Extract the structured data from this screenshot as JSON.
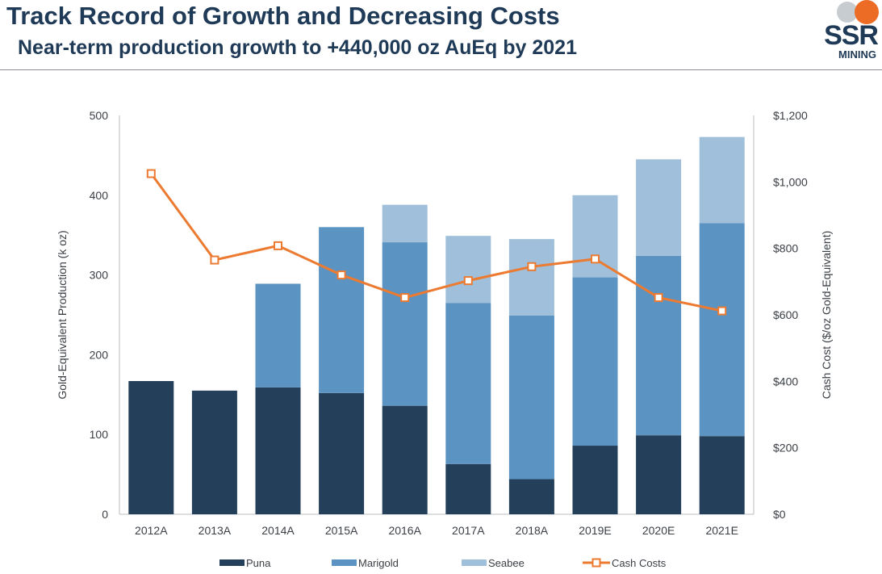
{
  "header": {
    "title": "Track Record of Growth and Decreasing Costs",
    "subtitle": "Near-term production growth to +440,000 oz AuEq by 2021"
  },
  "logo": {
    "text": "SSR",
    "subtext": "MINING",
    "colors": {
      "dot_grey": "#c7ccd1",
      "dot_orange": "#ec6b25"
    }
  },
  "chart_data": {
    "type": "bar",
    "stacked": true,
    "categories": [
      "2012A",
      "2013A",
      "2014A",
      "2015A",
      "2016A",
      "2017A",
      "2018A",
      "2019E",
      "2020E",
      "2021E"
    ],
    "series": [
      {
        "name": "Puna",
        "type": "bar",
        "axis": "left",
        "color": "#243f5a",
        "values": [
          167,
          155,
          159,
          152,
          136,
          63,
          44,
          86,
          99,
          98
        ]
      },
      {
        "name": "Marigold",
        "type": "bar",
        "axis": "left",
        "color": "#5b93c2",
        "values": [
          0,
          0,
          130,
          208,
          205,
          202,
          205,
          211,
          225,
          267
        ]
      },
      {
        "name": "Seabee",
        "type": "bar",
        "axis": "left",
        "color": "#9fbfda",
        "values": [
          0,
          0,
          0,
          0,
          47,
          84,
          96,
          103,
          121,
          108
        ]
      },
      {
        "name": "Cash Costs",
        "type": "line",
        "axis": "right",
        "color": "#ec7a30",
        "values": [
          1025,
          765,
          808,
          720,
          652,
          703,
          745,
          768,
          652,
          612
        ]
      }
    ],
    "ylabel": "Gold-Equivalent Production (k oz)",
    "ylabel_right": "Cash Cost ($/oz Gold-Equivalent)",
    "ylim": [
      0,
      500
    ],
    "ylim_right": [
      0,
      1200
    ],
    "yticks": [
      "0",
      "100",
      "200",
      "300",
      "400",
      "500"
    ],
    "yticks_right": [
      "$0",
      "$200",
      "$400",
      "$600",
      "$800",
      "$1,000",
      "$1,200"
    ],
    "grid": false,
    "legend_position": "bottom"
  }
}
